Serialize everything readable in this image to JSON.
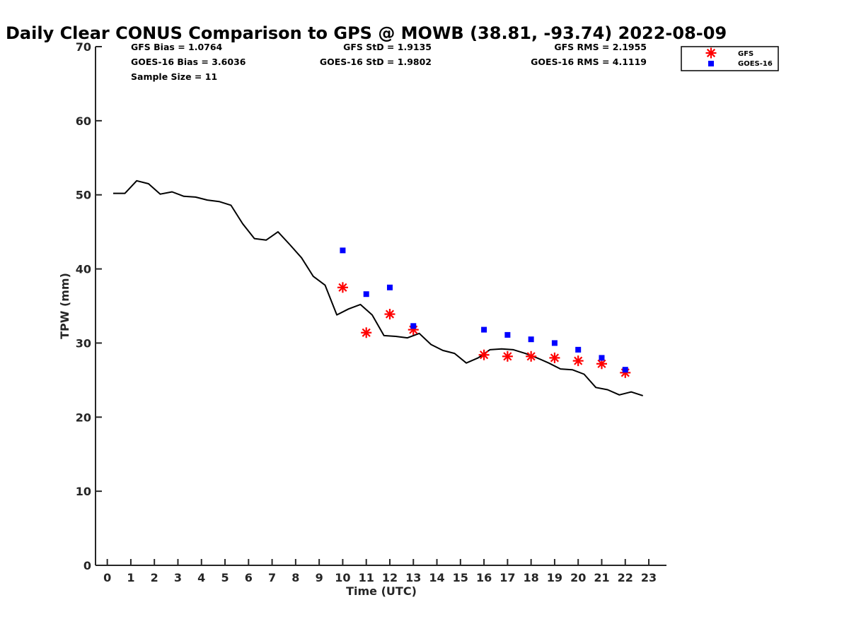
{
  "chart_data": {
    "type": "line",
    "title": "Daily Clear CONUS Comparison to GPS @ MOWB (38.81, -93.74) 2022-08-09",
    "xlabel": "Time (UTC)",
    "ylabel": "TPW (mm)",
    "xlim": [
      -0.5,
      23.75
    ],
    "ylim": [
      0,
      70
    ],
    "xticks": [
      0,
      1,
      2,
      3,
      4,
      5,
      6,
      7,
      8,
      9,
      10,
      11,
      12,
      13,
      14,
      15,
      16,
      17,
      18,
      19,
      20,
      21,
      22,
      23
    ],
    "yticks": [
      0,
      10,
      20,
      30,
      40,
      50,
      60,
      70
    ],
    "grid": false,
    "legend_position": "top-right-outside",
    "stats": {
      "gfs_bias": "GFS Bias = 1.0764",
      "goes_bias": "GOES-16 Bias = 3.6036",
      "sample_size": "Sample Size = 11",
      "gfs_std": "GFS StD = 1.9135",
      "goes_std": "GOES-16 StD = 1.9802",
      "gfs_rms": "GFS RMS = 2.1955",
      "goes_rms": "GOES-16 RMS = 4.1119"
    },
    "series": [
      {
        "name": "",
        "kind": "line",
        "color": "#000000",
        "x": [
          0.25,
          0.75,
          1.25,
          1.75,
          2.25,
          2.75,
          3.25,
          3.75,
          4.25,
          4.75,
          5.25,
          5.75,
          6.25,
          6.75,
          7.25,
          7.75,
          8.25,
          8.75,
          9.25,
          9.75,
          10.25,
          10.75,
          11.25,
          11.75,
          12.25,
          12.75,
          13.25,
          13.75,
          14.25,
          14.75,
          15.25,
          15.75,
          16.25,
          16.75,
          17.25,
          17.75,
          18.25,
          18.75,
          19.25,
          19.75,
          20.25,
          20.75,
          21.25,
          21.75,
          22.25,
          22.75
        ],
        "y": [
          50.2,
          50.2,
          51.9,
          51.5,
          50.1,
          50.4,
          49.8,
          49.7,
          49.3,
          49.1,
          48.6,
          46.1,
          44.1,
          43.9,
          45.0,
          43.3,
          41.5,
          39.0,
          37.8,
          33.8,
          34.6,
          35.2,
          33.8,
          31.0,
          30.9,
          30.7,
          31.3,
          29.8,
          29.0,
          28.6,
          27.3,
          28.0,
          29.1,
          29.2,
          29.1,
          28.6,
          28.0,
          27.3,
          26.5,
          26.4,
          25.8,
          24.0,
          23.7,
          23.0,
          23.4,
          22.9
        ]
      },
      {
        "name": "GFS",
        "kind": "scatter",
        "marker": "asterisk",
        "color": "#ff0000",
        "x": [
          10,
          11,
          12,
          13,
          16,
          17,
          18,
          19,
          20,
          21,
          22
        ],
        "y": [
          37.5,
          31.4,
          33.9,
          31.8,
          28.4,
          28.2,
          28.2,
          28.0,
          27.6,
          27.2,
          26.0
        ]
      },
      {
        "name": "GOES-16",
        "kind": "scatter",
        "marker": "square",
        "color": "#0000ff",
        "x": [
          10,
          11,
          12,
          13,
          16,
          17,
          18,
          19,
          20,
          21,
          22
        ],
        "y": [
          42.5,
          36.6,
          37.5,
          32.3,
          31.8,
          31.1,
          30.5,
          30.0,
          29.1,
          28.0,
          26.4
        ]
      }
    ]
  }
}
